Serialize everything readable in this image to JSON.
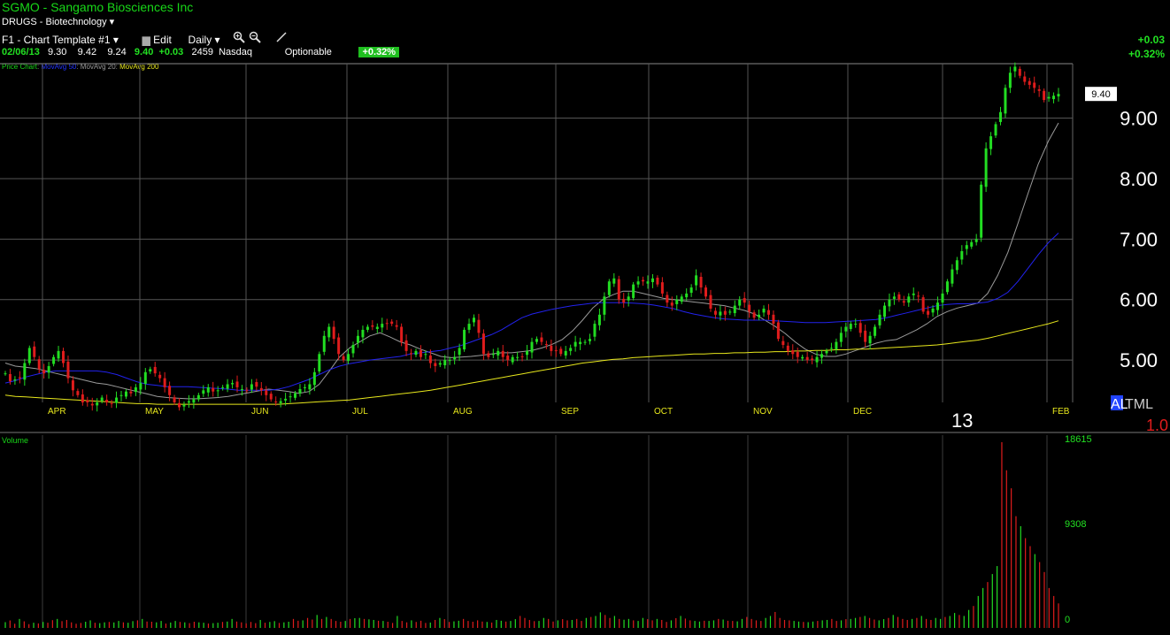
{
  "header": {
    "title": "SGMO - Sangamo Biosciences Inc",
    "group": "DRUGS - Biotechnology",
    "template": "F1 - Chart Template #1",
    "edit": "Edit",
    "period": "Daily"
  },
  "quote": {
    "date": "02/06/13",
    "open": "9.30",
    "high": "9.42",
    "low": "9.24",
    "close": "9.40",
    "change": "+0.03",
    "volume": "2459",
    "exchange": "Nasdaq",
    "optionable": "Optionable",
    "pct": "+0.32%"
  },
  "right_change": {
    "change": "+0.03",
    "pct": "+0.32%"
  },
  "legend": {
    "price": "Price Chart",
    "ma50": "MovAvg 50",
    "ma20": "MovAvg 20",
    "ma200": "MovAvg 200"
  },
  "corner": {
    "al": "AL",
    "tml": "TML",
    "val": "1.0",
    "year": "13"
  },
  "colors": {
    "up": "#22dd22",
    "down": "#e01c1c",
    "ma50": "#2222ee",
    "ma20": "#9a9a9a",
    "ma200": "#e8e81c",
    "grid": "#555555",
    "title": "#18d818"
  },
  "chart_data": [
    {
      "type": "candlestick",
      "title": "Price Chart",
      "ylim": [
        4.3,
        9.9
      ],
      "yticks": [
        "9.00",
        "8.00",
        "7.00",
        "6.00",
        "5.00"
      ],
      "price_label": "9.40",
      "months": [
        "APR",
        "MAY",
        "JUN",
        "JUL",
        "AUG",
        "SEP",
        "OCT",
        "NOV",
        "DEC",
        "FEB"
      ],
      "close": [
        4.78,
        4.65,
        4.68,
        4.7,
        4.95,
        5.2,
        5.05,
        4.85,
        4.78,
        4.9,
        5.05,
        5.15,
        4.95,
        4.7,
        4.5,
        4.42,
        4.3,
        4.3,
        4.25,
        4.3,
        4.38,
        4.3,
        4.28,
        4.38,
        4.42,
        4.48,
        4.45,
        4.55,
        4.62,
        4.8,
        4.85,
        4.78,
        4.7,
        4.55,
        4.42,
        4.3,
        4.22,
        4.26,
        4.32,
        4.35,
        4.42,
        4.5,
        4.55,
        4.48,
        4.5,
        4.55,
        4.6,
        4.62,
        4.55,
        4.52,
        4.5,
        4.6,
        4.56,
        4.5,
        4.42,
        4.35,
        4.3,
        4.32,
        4.36,
        4.4,
        4.45,
        4.52,
        4.55,
        4.6,
        4.8,
        5.1,
        5.4,
        5.55,
        5.35,
        5.1,
        5,
        5.1,
        5.25,
        5.4,
        5.5,
        5.55,
        5.55,
        5.55,
        5.6,
        5.6,
        5.6,
        5.55,
        5.3,
        5.15,
        5.1,
        5.15,
        5.05,
        5.1,
        4.95,
        4.9,
        4.95,
        5,
        5,
        5.05,
        5.2,
        5.5,
        5.6,
        5.7,
        5.45,
        5.1,
        5.05,
        5.1,
        5.15,
        5.05,
        5,
        5.05,
        5.05,
        5.05,
        5.15,
        5.3,
        5.35,
        5.3,
        5.25,
        5.15,
        5.15,
        5.1,
        5.15,
        5.2,
        5.3,
        5.3,
        5.3,
        5.35,
        5.6,
        5.75,
        6.05,
        6.3,
        6.35,
        6,
        5.95,
        6.05,
        6.25,
        6.3,
        6.3,
        6.3,
        6.35,
        6.25,
        6.1,
        5.95,
        5.9,
        6,
        6.05,
        6.1,
        6.2,
        6.4,
        6.2,
        6.05,
        5.85,
        5.75,
        5.8,
        5.75,
        5.8,
        5.9,
        6,
        5.95,
        5.8,
        5.7,
        5.75,
        5.85,
        5.75,
        5.6,
        5.35,
        5.25,
        5.15,
        5.1,
        5.05,
        5.05,
        5,
        5,
        5.05,
        5.1,
        5.15,
        5.2,
        5.3,
        5.45,
        5.55,
        5.6,
        5.6,
        5.45,
        5.3,
        5.4,
        5.55,
        5.75,
        5.9,
        6,
        6.05,
        6,
        5.95,
        6.05,
        6.1,
        6.05,
        5.8,
        5.75,
        5.85,
        5.95,
        6.1,
        6.3,
        6.5,
        6.65,
        6.8,
        6.9,
        6.95,
        7.0,
        7.9,
        8.5,
        8.7,
        8.9,
        9.1,
        9.5,
        9.75,
        9.85,
        9.7,
        9.6,
        9.55,
        9.5,
        9.45,
        9.3,
        9.35,
        9.37,
        9.4
      ],
      "series": [
        {
          "name": "MovAvg 20",
          "values": [
            4.95,
            4.9,
            4.88,
            4.86,
            4.82,
            4.78,
            4.74,
            4.7,
            4.66,
            4.62,
            4.6,
            4.56,
            4.52,
            4.48,
            4.44,
            4.4,
            4.38,
            4.37,
            4.36,
            4.36,
            4.37,
            4.38,
            4.4,
            4.43,
            4.46,
            4.49,
            4.52,
            4.5,
            4.48,
            4.45,
            4.48,
            4.6,
            4.82,
            5.05,
            5.2,
            5.3,
            5.4,
            5.45,
            5.38,
            5.3,
            5.25,
            5.18,
            5.12,
            5.06,
            5.04,
            5.05,
            5.06,
            5.08,
            5.1,
            5.12,
            5.12,
            5.14,
            5.16,
            5.2,
            5.26,
            5.34,
            5.48,
            5.66,
            5.86,
            6.0,
            6.08,
            6.14,
            6.14,
            6.1,
            6.06,
            6.02,
            6.0,
            5.98,
            5.96,
            5.94,
            5.92,
            5.9,
            5.86,
            5.82,
            5.76,
            5.66,
            5.56,
            5.44,
            5.3,
            5.18,
            5.1,
            5.06,
            5.06,
            5.1,
            5.16,
            5.22,
            5.28,
            5.32,
            5.34,
            5.42,
            5.5,
            5.6,
            5.72,
            5.8,
            5.86,
            5.9,
            5.94,
            6.1,
            6.4,
            6.78,
            7.26,
            7.76,
            8.24,
            8.62,
            8.92
          ]
        },
        {
          "name": "MovAvg 50",
          "values": [
            4.62,
            4.66,
            4.72,
            4.76,
            4.8,
            4.82,
            4.82,
            4.82,
            4.82,
            4.82,
            4.8,
            4.76,
            4.7,
            4.64,
            4.6,
            4.58,
            4.56,
            4.56,
            4.56,
            4.55,
            4.54,
            4.53,
            4.52,
            4.5,
            4.5,
            4.5,
            4.5,
            4.52,
            4.56,
            4.62,
            4.68,
            4.76,
            4.84,
            4.9,
            4.94,
            4.97,
            5.0,
            5.02,
            5.04,
            5.06,
            5.1,
            5.12,
            5.14,
            5.16,
            5.2,
            5.24,
            5.3,
            5.36,
            5.42,
            5.5,
            5.6,
            5.7,
            5.76,
            5.8,
            5.84,
            5.87,
            5.9,
            5.92,
            5.94,
            5.95,
            5.95,
            5.95,
            5.94,
            5.93,
            5.91,
            5.88,
            5.85,
            5.8,
            5.76,
            5.73,
            5.7,
            5.68,
            5.67,
            5.66,
            5.66,
            5.66,
            5.65,
            5.64,
            5.63,
            5.62,
            5.62,
            5.62,
            5.63,
            5.64,
            5.65,
            5.66,
            5.67,
            5.7,
            5.74,
            5.78,
            5.82,
            5.86,
            5.9,
            5.92,
            5.93,
            5.93,
            5.94,
            5.96,
            6.02,
            6.12,
            6.3,
            6.52,
            6.74,
            6.94,
            7.1
          ]
        },
        {
          "name": "MovAvg 200",
          "values": [
            4.42,
            4.4,
            4.39,
            4.38,
            4.37,
            4.36,
            4.35,
            4.34,
            4.33,
            4.32,
            4.31,
            4.3,
            4.29,
            4.28,
            4.28,
            4.27,
            4.27,
            4.27,
            4.27,
            4.27,
            4.27,
            4.27,
            4.27,
            4.27,
            4.27,
            4.27,
            4.27,
            4.27,
            4.28,
            4.29,
            4.3,
            4.31,
            4.32,
            4.33,
            4.34,
            4.36,
            4.38,
            4.4,
            4.42,
            4.44,
            4.46,
            4.48,
            4.5,
            4.53,
            4.56,
            4.59,
            4.62,
            4.65,
            4.68,
            4.71,
            4.74,
            4.77,
            4.8,
            4.83,
            4.86,
            4.89,
            4.92,
            4.95,
            4.97,
            4.99,
            5.01,
            5.02,
            5.04,
            5.05,
            5.06,
            5.07,
            5.08,
            5.09,
            5.1,
            5.1,
            5.11,
            5.11,
            5.12,
            5.12,
            5.13,
            5.13,
            5.14,
            5.14,
            5.15,
            5.15,
            5.16,
            5.16,
            5.17,
            5.17,
            5.18,
            5.18,
            5.19,
            5.2,
            5.21,
            5.22,
            5.23,
            5.24,
            5.25,
            5.27,
            5.29,
            5.31,
            5.33,
            5.36,
            5.4,
            5.44,
            5.48,
            5.52,
            5.56,
            5.6,
            5.65
          ]
        }
      ]
    },
    {
      "type": "bar",
      "title": "Volume",
      "ylim": [
        0,
        18615
      ],
      "yticks": [
        "18615",
        "9308",
        "0"
      ],
      "values": [
        580,
        750,
        420,
        900,
        660,
        380,
        520,
        450,
        600,
        520,
        780,
        900,
        680,
        800,
        560,
        420,
        500,
        620,
        760,
        520,
        480,
        560,
        600,
        550,
        700,
        560,
        520,
        680,
        760,
        900,
        640,
        620,
        560,
        700,
        440,
        540,
        700,
        600,
        560,
        480,
        620,
        560,
        520,
        440,
        480,
        520,
        600,
        640,
        900,
        640,
        560,
        460,
        600,
        480,
        800,
        520,
        600,
        680,
        500,
        560,
        620,
        900,
        720,
        760,
        1000,
        840,
        1300,
        900,
        1100,
        900,
        700,
        620,
        700,
        900,
        980,
        1000,
        900,
        860,
        800,
        720,
        700,
        620,
        500,
        1200,
        700,
        560,
        760,
        600,
        720,
        500,
        540,
        800,
        1000,
        880,
        600,
        660,
        720,
        900,
        700,
        620,
        760,
        640,
        600,
        540,
        800,
        720,
        640,
        700,
        880,
        1200,
        1000,
        800,
        680,
        700,
        1000,
        900,
        640,
        760,
        880,
        760,
        800,
        900,
        700,
        1000,
        1100,
        1200,
        1560,
        1300,
        1000,
        1200,
        900,
        820,
        900,
        760,
        700,
        1000,
        880,
        760,
        900,
        800,
        600,
        760,
        980,
        1200,
        940,
        760,
        700,
        640,
        720,
        700,
        760,
        900,
        840,
        720,
        700,
        660,
        900,
        1100,
        900,
        760,
        700,
        1000,
        1200,
        1600,
        1000,
        800,
        760,
        700,
        640,
        600,
        580,
        640,
        700,
        760,
        800,
        900,
        700,
        760,
        880,
        900,
        1000,
        1100,
        1200,
        1000,
        840,
        760,
        880,
        1000,
        1300,
        1100,
        900,
        800,
        900,
        1000,
        1200,
        900,
        800,
        1000,
        900,
        1100,
        1200,
        1500,
        1300,
        1200,
        1800,
        2200,
        3200,
        4000,
        4600,
        5400,
        6200,
        18615,
        15800,
        14000,
        11200,
        10200,
        9000,
        8200,
        7400,
        6600,
        5600,
        4000,
        3200,
        2459
      ]
    }
  ]
}
